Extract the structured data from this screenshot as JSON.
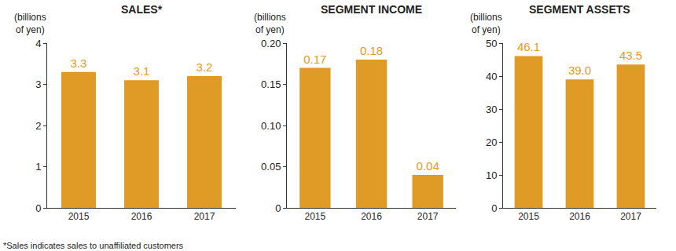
{
  "chart_data": [
    {
      "type": "bar",
      "title": "SALES*",
      "ylabel": "(billions\nof yen)",
      "categories": [
        "2015",
        "2016",
        "2017"
      ],
      "values": [
        3.3,
        3.1,
        3.2
      ],
      "color": "#e09b27",
      "ylim": [
        0,
        4
      ],
      "yticks": [
        0,
        1,
        2,
        3,
        4
      ],
      "grid": false,
      "data_labels": true
    },
    {
      "type": "bar",
      "title": "SEGMENT INCOME",
      "ylabel": "(billions\nof yen)",
      "categories": [
        "2015",
        "2016",
        "2017"
      ],
      "values": [
        0.17,
        0.18,
        0.04
      ],
      "color": "#e09b27",
      "ylim": [
        0,
        0.2
      ],
      "yticks": [
        0,
        0.05,
        {
          "value": 0.1,
          "label": "0.10"
        },
        0.15,
        {
          "value": 0.2,
          "label": "0.20"
        }
      ],
      "grid": false,
      "data_labels": true
    },
    {
      "type": "bar",
      "title": "SEGMENT ASSETS",
      "ylabel": "(billions\nof yen)",
      "categories": [
        "2015",
        "2016",
        "2017"
      ],
      "values": [
        46.1,
        39.0,
        43.5
      ],
      "value_labels": [
        "46.1",
        "39.0",
        "43.5"
      ],
      "color": "#e09b27",
      "ylim": [
        0,
        50
      ],
      "yticks": [
        0,
        10,
        20,
        30,
        40,
        50
      ],
      "grid": false,
      "data_labels": true
    }
  ],
  "footnote": "*Sales indicates sales to unaffiliated customers"
}
